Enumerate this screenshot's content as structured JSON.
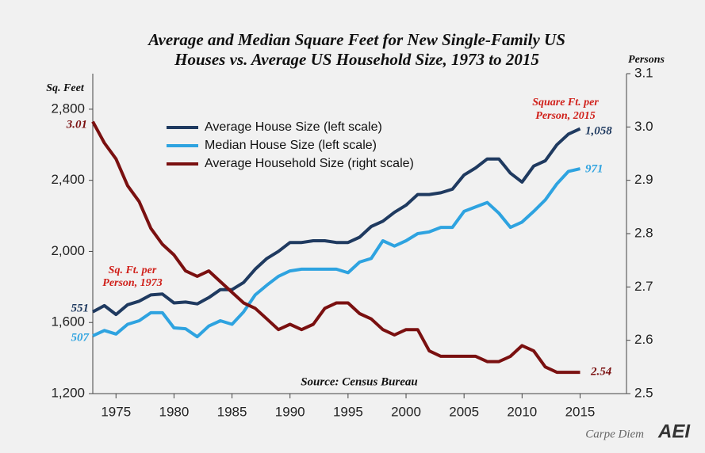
{
  "chart_data": {
    "type": "line",
    "title": [
      "Average and Median Square Feet for New Single-Family US",
      "Houses vs. Average US Household Size, 1973 to 2015"
    ],
    "ylabel": "Sq. Feet",
    "y2label": "Persons",
    "x": [
      1973,
      1974,
      1975,
      1976,
      1977,
      1978,
      1979,
      1980,
      1981,
      1982,
      1983,
      1984,
      1985,
      1986,
      1987,
      1988,
      1989,
      1990,
      1991,
      1992,
      1993,
      1994,
      1995,
      1996,
      1997,
      1998,
      1999,
      2000,
      2001,
      2002,
      2003,
      2004,
      2005,
      2006,
      2007,
      2008,
      2009,
      2010,
      2011,
      2012,
      2013,
      2014,
      2015
    ],
    "series": [
      {
        "name": "Average House Size (left scale)",
        "color": "#1f3a60",
        "values": [
          1660,
          1695,
          1645,
          1700,
          1720,
          1755,
          1760,
          1710,
          1715,
          1705,
          1740,
          1785,
          1785,
          1825,
          1900,
          1960,
          2000,
          2050,
          2050,
          2060,
          2060,
          2050,
          2050,
          2080,
          2140,
          2170,
          2220,
          2260,
          2320,
          2320,
          2330,
          2350,
          2430,
          2470,
          2520,
          2520,
          2440,
          2390,
          2480,
          2510,
          2600,
          2660,
          2690
        ]
      },
      {
        "name": "Median House Size (left scale)",
        "color": "#2ea3e0",
        "values": [
          1525,
          1555,
          1535,
          1590,
          1610,
          1655,
          1655,
          1570,
          1565,
          1520,
          1580,
          1610,
          1590,
          1660,
          1755,
          1810,
          1860,
          1890,
          1900,
          1900,
          1900,
          1900,
          1880,
          1940,
          1960,
          2060,
          2030,
          2060,
          2100,
          2110,
          2135,
          2135,
          2225,
          2250,
          2275,
          2215,
          2135,
          2165,
          2225,
          2290,
          2380,
          2450,
          2465
        ]
      },
      {
        "name": "Average Household Size (right scale)",
        "color": "#7a1010",
        "axis": "y2",
        "values": [
          3.01,
          2.97,
          2.94,
          2.89,
          2.86,
          2.81,
          2.78,
          2.76,
          2.73,
          2.72,
          2.73,
          2.71,
          2.69,
          2.67,
          2.66,
          2.64,
          2.62,
          2.63,
          2.62,
          2.63,
          2.66,
          2.67,
          2.67,
          2.65,
          2.64,
          2.62,
          2.61,
          2.62,
          2.62,
          2.58,
          2.57,
          2.57,
          2.57,
          2.57,
          2.56,
          2.56,
          2.57,
          2.59,
          2.58,
          2.55,
          2.54,
          2.54,
          2.54
        ]
      }
    ],
    "xlim": [
      1973,
      2019
    ],
    "xticks": [
      1975,
      1980,
      1985,
      1990,
      1995,
      2000,
      2005,
      2010,
      2015
    ],
    "ylim": [
      1200,
      3000
    ],
    "yticks": [
      {
        "value": 1200,
        "label": "1,200"
      },
      {
        "value": 1600,
        "label": "1,600"
      },
      {
        "value": 2000,
        "label": "2,000"
      },
      {
        "value": 2400,
        "label": "2,400"
      },
      {
        "value": 2800,
        "label": "2,800"
      }
    ],
    "y2lim": [
      2.5,
      3.1
    ],
    "y2ticks": [
      2.5,
      2.6,
      2.7,
      2.8,
      2.9,
      {
        "value": 3,
        "label": "3.0"
      },
      3.1
    ],
    "annotations": [
      "3.01",
      "551",
      "507",
      "1,058",
      "971",
      "2.54",
      "Sq. Ft. per",
      "Person, 1973",
      "Square Ft. per",
      "Person, 2015",
      "Source: Census Bureau"
    ],
    "footer": [
      "Carpe Diem",
      "AEI"
    ]
  }
}
